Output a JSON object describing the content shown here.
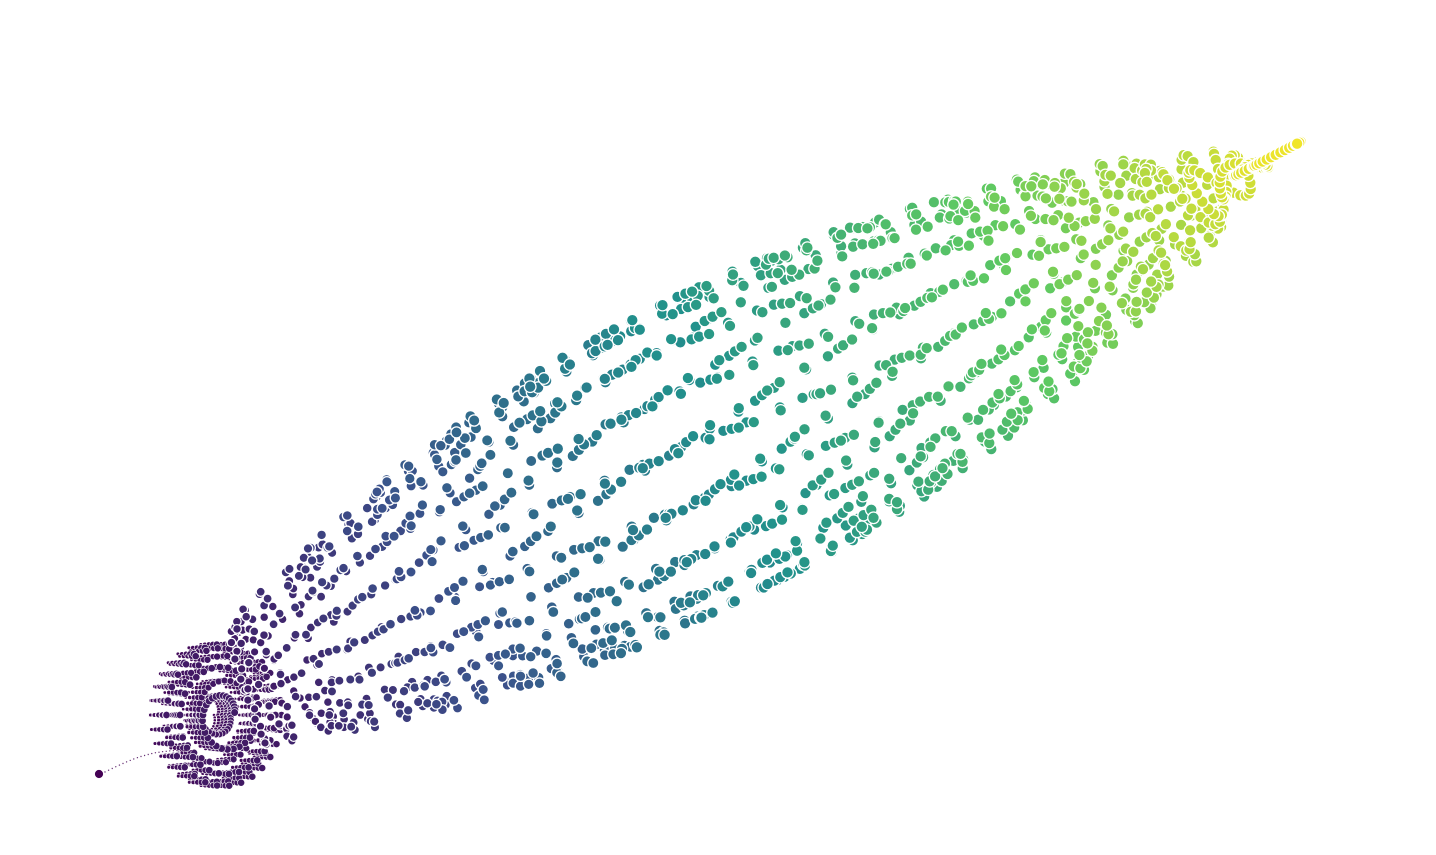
{
  "figure": {
    "kind": "generative scatter art",
    "description_free": true,
    "colormap": "viridis",
    "colormap_stops": [
      "#440154",
      "#3b528b",
      "#21918c",
      "#5ec962",
      "#fde725"
    ],
    "marker_edge_color": "#ffffff",
    "background_color": "#ffffff",
    "grid": false,
    "axes_visible": false
  }
}
